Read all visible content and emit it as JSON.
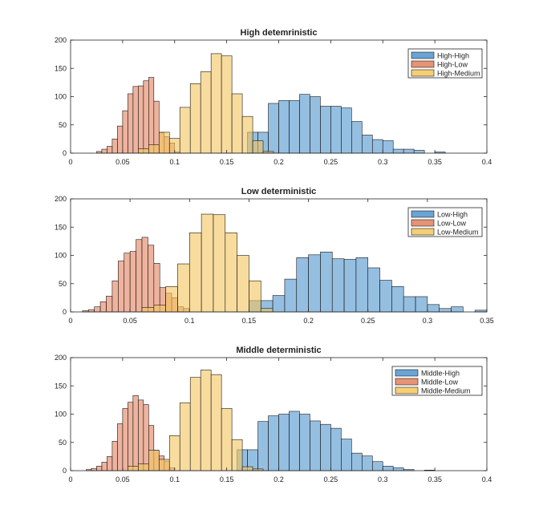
{
  "chart_data": [
    {
      "type": "histogram",
      "title": "High detemrinistic",
      "xlim": [
        0,
        0.4
      ],
      "ylim": [
        0,
        200
      ],
      "xticks": [
        "0",
        "0.05",
        "0.1",
        "0.15",
        "0.2",
        "0.25",
        "0.3",
        "0.35",
        "0.4"
      ],
      "yticks": [
        "0",
        "50",
        "100",
        "150",
        "200"
      ],
      "legend": "top-right",
      "series": [
        {
          "name": "High-High",
          "color": "#4f94cd",
          "bin_start": 0.17,
          "bin_width": 0.01,
          "counts": [
            37,
            37,
            88,
            93,
            93,
            104,
            100,
            83,
            83,
            80,
            56,
            32,
            24,
            22,
            7,
            7,
            5,
            0,
            2
          ]
        },
        {
          "name": "High-Low",
          "color": "#e3805d",
          "bin_start": 0.025,
          "bin_width": 0.005,
          "counts": [
            3,
            7,
            12,
            25,
            48,
            75,
            105,
            118,
            119,
            128,
            134,
            92,
            36,
            29,
            18,
            2
          ]
        },
        {
          "name": "High-Medium",
          "color": "#f4c55e",
          "bin_start": 0.065,
          "bin_width": 0.01,
          "counts": [
            8,
            15,
            37,
            26,
            81,
            123,
            144,
            176,
            172,
            105,
            65,
            22,
            3
          ]
        }
      ]
    },
    {
      "type": "histogram",
      "title": "Low deterministic",
      "xlim": [
        0,
        0.35
      ],
      "ylim": [
        0,
        200
      ],
      "xticks": [
        "0",
        "0.05",
        "0.1",
        "0.15",
        "0.2",
        "0.25",
        "0.3",
        "0.35"
      ],
      "yticks": [
        "0",
        "50",
        "100",
        "150",
        "200"
      ],
      "legend": "top-right",
      "series": [
        {
          "name": "Low-High",
          "color": "#4f94cd",
          "bin_start": 0.15,
          "bin_width": 0.01,
          "counts": [
            20,
            20,
            29,
            58,
            96,
            101,
            106,
            94,
            93,
            96,
            78,
            56,
            45,
            27,
            27,
            13,
            6,
            9,
            0,
            3
          ]
        },
        {
          "name": "Low-Low",
          "color": "#e3805d",
          "bin_start": 0.01,
          "bin_width": 0.005,
          "counts": [
            2,
            4,
            9,
            18,
            28,
            55,
            90,
            104,
            107,
            128,
            132,
            118,
            86,
            43,
            33,
            25,
            9,
            6
          ]
        },
        {
          "name": "Low-Medium",
          "color": "#f4c55e",
          "bin_start": 0.06,
          "bin_width": 0.01,
          "counts": [
            8,
            12,
            45,
            85,
            140,
            173,
            172,
            140,
            100,
            55,
            6
          ]
        }
      ]
    },
    {
      "type": "histogram",
      "title": "Middle deterministic",
      "xlim": [
        0,
        0.4
      ],
      "ylim": [
        0,
        200
      ],
      "xticks": [
        "0",
        "0.05",
        "0.1",
        "0.15",
        "0.2",
        "0.25",
        "0.3",
        "0.35",
        "0.4"
      ],
      "yticks": [
        "0",
        "50",
        "100",
        "150",
        "200"
      ],
      "legend": "top-right",
      "series": [
        {
          "name": "Middle-High",
          "color": "#4f94cd",
          "bin_start": 0.16,
          "bin_width": 0.01,
          "counts": [
            37,
            37,
            87,
            97,
            100,
            105,
            100,
            88,
            82,
            75,
            56,
            31,
            26,
            16,
            8,
            5,
            2,
            0,
            1
          ]
        },
        {
          "name": "Middle-Low",
          "color": "#e3805d",
          "bin_start": 0.015,
          "bin_width": 0.005,
          "counts": [
            2,
            4,
            8,
            15,
            25,
            52,
            83,
            110,
            121,
            133,
            125,
            117,
            80,
            36,
            26,
            17,
            5
          ]
        },
        {
          "name": "Middle-Medium",
          "color": "#f4c55e",
          "bin_start": 0.055,
          "bin_width": 0.01,
          "counts": [
            8,
            12,
            36,
            20,
            62,
            120,
            165,
            178,
            170,
            110,
            55,
            7,
            3
          ]
        }
      ]
    }
  ]
}
